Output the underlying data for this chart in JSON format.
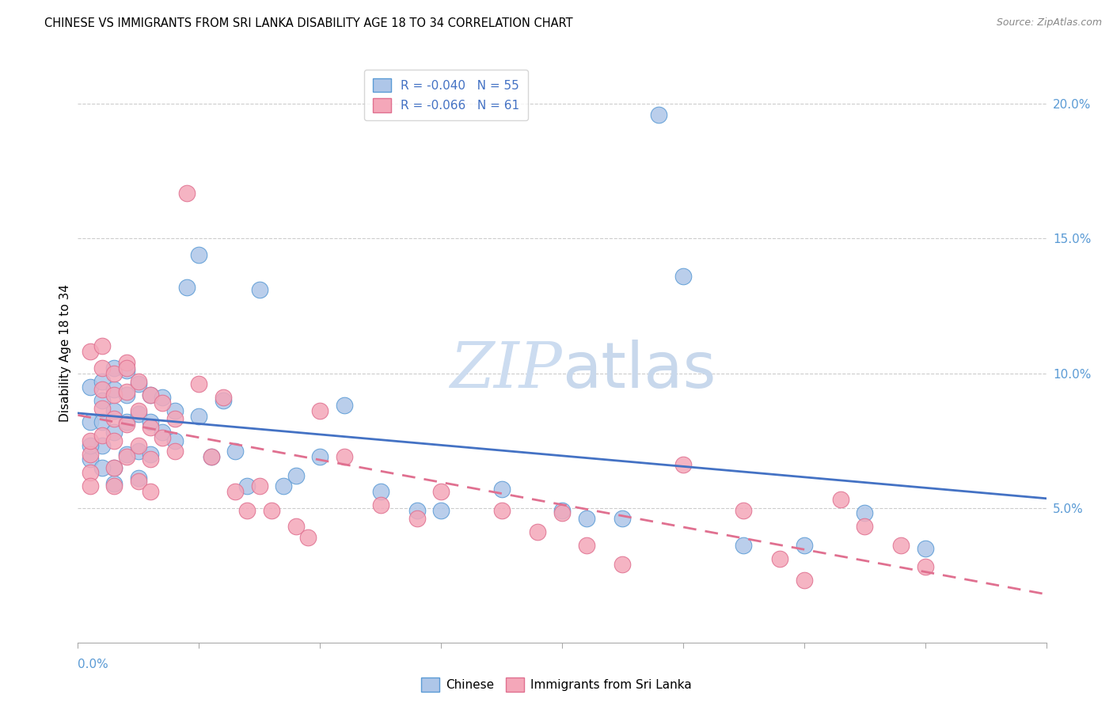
{
  "title": "CHINESE VS IMMIGRANTS FROM SRI LANKA DISABILITY AGE 18 TO 34 CORRELATION CHART",
  "source": "Source: ZipAtlas.com",
  "ylabel": "Disability Age 18 to 34",
  "right_ytick_labels": [
    "5.0%",
    "10.0%",
    "15.0%",
    "20.0%"
  ],
  "right_yticks": [
    0.05,
    0.1,
    0.15,
    0.2
  ],
  "legend_line1": "R = -0.040   N = 55",
  "legend_line2": "R = -0.066   N = 61",
  "chinese_x": [
    0.001,
    0.001,
    0.001,
    0.002,
    0.002,
    0.002,
    0.002,
    0.003,
    0.003,
    0.003,
    0.003,
    0.003,
    0.004,
    0.004,
    0.004,
    0.004,
    0.005,
    0.005,
    0.005,
    0.006,
    0.006,
    0.006,
    0.007,
    0.007,
    0.008,
    0.009,
    0.01,
    0.01,
    0.011,
    0.012,
    0.013,
    0.014,
    0.015,
    0.017,
    0.018,
    0.02,
    0.022,
    0.025,
    0.028,
    0.03,
    0.035,
    0.04,
    0.042,
    0.045,
    0.048,
    0.05,
    0.055,
    0.06,
    0.065,
    0.07,
    0.001,
    0.002,
    0.003,
    0.005,
    0.008
  ],
  "chinese_y": [
    0.095,
    0.082,
    0.068,
    0.097,
    0.09,
    0.082,
    0.073,
    0.102,
    0.094,
    0.086,
    0.078,
    0.065,
    0.101,
    0.092,
    0.082,
    0.07,
    0.096,
    0.085,
    0.071,
    0.092,
    0.082,
    0.07,
    0.091,
    0.078,
    0.086,
    0.132,
    0.144,
    0.084,
    0.069,
    0.09,
    0.071,
    0.058,
    0.131,
    0.058,
    0.062,
    0.069,
    0.088,
    0.056,
    0.049,
    0.049,
    0.057,
    0.049,
    0.046,
    0.046,
    0.196,
    0.136,
    0.036,
    0.036,
    0.048,
    0.035,
    0.073,
    0.065,
    0.059,
    0.061,
    0.075
  ],
  "srilanka_x": [
    0.001,
    0.001,
    0.001,
    0.001,
    0.002,
    0.002,
    0.002,
    0.002,
    0.003,
    0.003,
    0.003,
    0.003,
    0.003,
    0.004,
    0.004,
    0.004,
    0.004,
    0.005,
    0.005,
    0.005,
    0.005,
    0.006,
    0.006,
    0.006,
    0.007,
    0.007,
    0.008,
    0.008,
    0.009,
    0.01,
    0.011,
    0.012,
    0.013,
    0.014,
    0.015,
    0.016,
    0.018,
    0.019,
    0.02,
    0.022,
    0.025,
    0.028,
    0.03,
    0.035,
    0.038,
    0.04,
    0.042,
    0.045,
    0.05,
    0.055,
    0.058,
    0.06,
    0.063,
    0.065,
    0.068,
    0.07,
    0.001,
    0.002,
    0.003,
    0.004,
    0.006
  ],
  "srilanka_y": [
    0.07,
    0.075,
    0.063,
    0.058,
    0.102,
    0.094,
    0.087,
    0.077,
    0.1,
    0.092,
    0.083,
    0.075,
    0.058,
    0.104,
    0.093,
    0.081,
    0.069,
    0.097,
    0.086,
    0.073,
    0.06,
    0.092,
    0.08,
    0.068,
    0.089,
    0.076,
    0.083,
    0.071,
    0.167,
    0.096,
    0.069,
    0.091,
    0.056,
    0.049,
    0.058,
    0.049,
    0.043,
    0.039,
    0.086,
    0.069,
    0.051,
    0.046,
    0.056,
    0.049,
    0.041,
    0.048,
    0.036,
    0.029,
    0.066,
    0.049,
    0.031,
    0.023,
    0.053,
    0.043,
    0.036,
    0.028,
    0.108,
    0.11,
    0.065,
    0.102,
    0.056
  ],
  "blue_fill": "#aec6e8",
  "blue_edge": "#5b9bd5",
  "pink_fill": "#f4a7b9",
  "pink_edge": "#e07090",
  "blue_line": "#4472c4",
  "pink_line": "#e07090",
  "watermark_color": "#ccdcf0",
  "grid_color": "#cccccc",
  "xlim": [
    0.0,
    0.08
  ],
  "ylim": [
    0.0,
    0.215
  ]
}
